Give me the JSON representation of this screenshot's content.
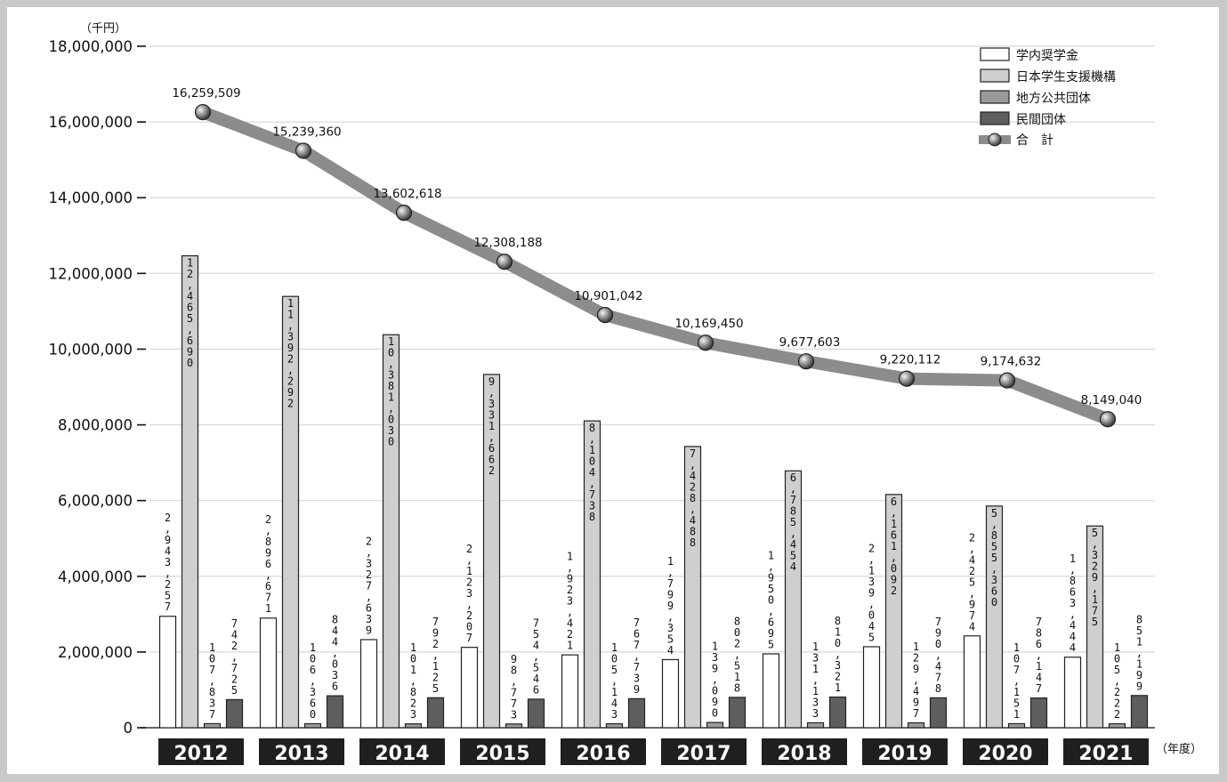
{
  "chart_data": {
    "type": "bar",
    "title": "",
    "y_unit_label": "（千円）",
    "x_unit_label": "（年度）",
    "ylim": [
      0,
      18000000
    ],
    "y_ticks": [
      0,
      2000000,
      4000000,
      6000000,
      8000000,
      10000000,
      12000000,
      14000000,
      16000000,
      18000000
    ],
    "y_tick_labels": [
      "0",
      "2,000,000",
      "4,000,000",
      "6,000,000",
      "8,000,000",
      "10,000,000",
      "12,000,000",
      "14,000,000",
      "16,000,000",
      "18,000,000"
    ],
    "grid": true,
    "legend_position": "top-right",
    "categories": [
      "2012",
      "2013",
      "2014",
      "2015",
      "2016",
      "2017",
      "2018",
      "2019",
      "2020",
      "2021"
    ],
    "series": [
      {
        "name": "学内奨学金",
        "color": "#ffffff",
        "values": [
          2943257,
          2896671,
          2327639,
          2123207,
          1923421,
          1799354,
          1950695,
          2139045,
          2425974,
          1863444
        ],
        "labels": [
          "2,943,257",
          "2,896,671",
          "2,327,639",
          "2,123,207",
          "1,923,421",
          "1,799,354",
          "1,950,695",
          "2,139,045",
          "2,425,974",
          "1,863,444"
        ]
      },
      {
        "name": "日本学生支援機構",
        "color": "#cfcfcf",
        "values": [
          12465690,
          11392292,
          10381030,
          9331662,
          8104738,
          7428488,
          6785454,
          6161092,
          5855360,
          5329175
        ],
        "labels": [
          "12,465,690",
          "11,392,292",
          "10,381,030",
          "9,331,662",
          "8,104,738",
          "7,428,488",
          "6,785,454",
          "6,161,092",
          "5,855,360",
          "5,329,175"
        ]
      },
      {
        "name": "地方公共団体",
        "color": "#9a9a9a",
        "values": [
          107837,
          106360,
          101823,
          98773,
          105143,
          139090,
          131133,
          129497,
          107151,
          105222
        ],
        "labels": [
          "107,837",
          "106,360",
          "101,823",
          "98,773",
          "105,143",
          "139,090",
          "131,133",
          "129,497",
          "107,151",
          "105,222"
        ]
      },
      {
        "name": "民間団体",
        "color": "#5e5e5e",
        "values": [
          742725,
          844036,
          792125,
          754546,
          767739,
          802518,
          810321,
          790478,
          786147,
          851199
        ],
        "labels": [
          "742,725",
          "844,036",
          "792,125",
          "754,546",
          "767,739",
          "802,518",
          "810,321",
          "790,478",
          "786,147",
          "851,199"
        ]
      }
    ],
    "total": {
      "name": "合　計",
      "color": "#8c8c8c",
      "values": [
        16259509,
        15239360,
        13602618,
        12308188,
        10901042,
        10169450,
        9677603,
        9220112,
        9174632,
        8149040
      ],
      "labels": [
        "16,259,509",
        "15,239,360",
        "13,602,618",
        "12,308,188",
        "10,901,042",
        "10,169,450",
        "9,677,603",
        "9,220,112",
        "9,174,632",
        "8,149,040"
      ]
    }
  }
}
